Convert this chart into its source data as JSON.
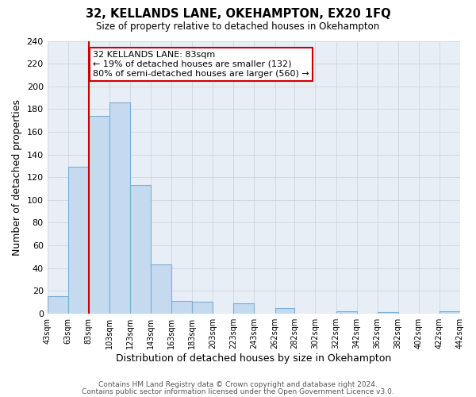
{
  "title1": "32, KELLANDS LANE, OKEHAMPTON, EX20 1FQ",
  "title2": "Size of property relative to detached houses in Okehampton",
  "xlabel": "Distribution of detached houses by size in Okehampton",
  "ylabel": "Number of detached properties",
  "bin_edges": [
    43,
    63,
    83,
    103,
    123,
    143,
    163,
    183,
    203,
    223,
    243,
    263,
    282,
    302,
    322,
    342,
    362,
    382,
    402,
    422,
    442
  ],
  "counts": [
    15,
    129,
    174,
    186,
    113,
    43,
    11,
    10,
    0,
    9,
    0,
    5,
    0,
    0,
    2,
    0,
    1,
    0,
    0,
    2
  ],
  "bar_facecolor": "#c5d9ef",
  "bar_edgecolor": "#7bafd4",
  "vline_x": 83,
  "vline_color": "#cc0000",
  "annotation_title": "32 KELLANDS LANE: 83sqm",
  "annotation_line1": "← 19% of detached houses are smaller (132)",
  "annotation_line2": "80% of semi-detached houses are larger (560) →",
  "annotation_box_edgecolor": "#cc0000",
  "annotation_box_facecolor": "#ffffff",
  "ylim": [
    0,
    240
  ],
  "yticks": [
    0,
    20,
    40,
    60,
    80,
    100,
    120,
    140,
    160,
    180,
    200,
    220,
    240
  ],
  "tick_labels": [
    "43sqm",
    "63sqm",
    "83sqm",
    "103sqm",
    "123sqm",
    "143sqm",
    "163sqm",
    "183sqm",
    "203sqm",
    "223sqm",
    "243sqm",
    "262sqm",
    "282sqm",
    "302sqm",
    "322sqm",
    "342sqm",
    "362sqm",
    "382sqm",
    "402sqm",
    "422sqm",
    "442sqm"
  ],
  "footer1": "Contains HM Land Registry data © Crown copyright and database right 2024.",
  "footer2": "Contains public sector information licensed under the Open Government Licence v3.0.",
  "background_color": "#ffffff",
  "plot_bg_color": "#e8eef6",
  "grid_color": "#c8d0dc"
}
